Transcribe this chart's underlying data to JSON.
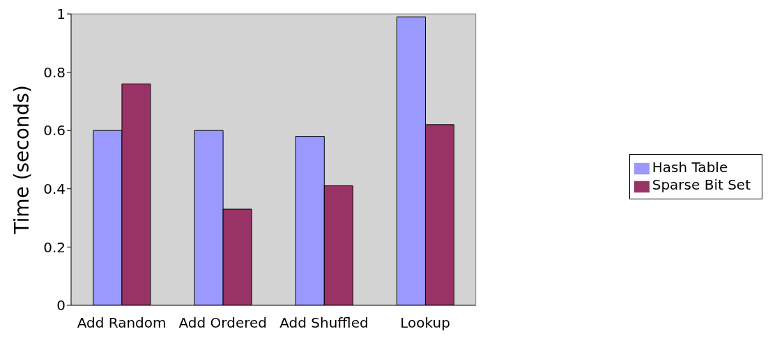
{
  "chart_data": {
    "type": "bar",
    "ylabel": "Time (seconds)",
    "categories": [
      "Add Random",
      "Add Ordered",
      "Add Shuffled",
      "Lookup"
    ],
    "series": [
      {
        "name": "Hash Table",
        "color": "#9999ff",
        "values": [
          0.6,
          0.6,
          0.58,
          0.99
        ]
      },
      {
        "name": "Sparse Bit Set",
        "color": "#993366",
        "values": [
          0.76,
          0.33,
          0.41,
          0.62
        ]
      }
    ],
    "ylim": [
      0,
      1
    ],
    "yticks": [
      0,
      0.2,
      0.4,
      0.6,
      0.8,
      1
    ],
    "grid": false,
    "legend": "right"
  }
}
